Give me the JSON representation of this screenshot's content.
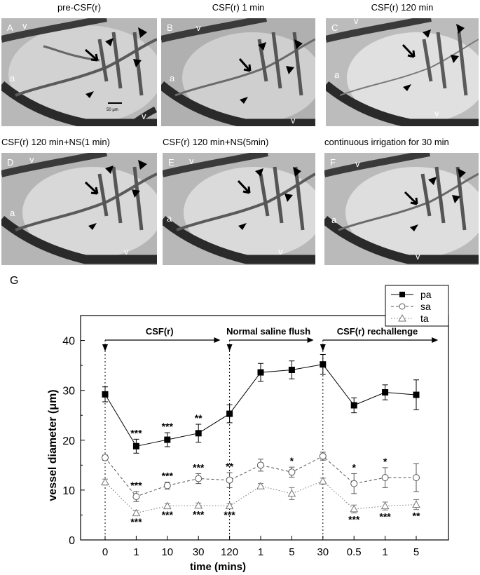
{
  "panels": [
    {
      "letter": "A",
      "title": "pre-CSF(r)",
      "scale_bar": "50 μm",
      "vessel_labels": [
        "v",
        "a",
        "v"
      ]
    },
    {
      "letter": "B",
      "title": "CSF(r) 1 min",
      "vessel_labels": [
        "v",
        "a",
        "v"
      ]
    },
    {
      "letter": "C",
      "title": "CSF(r) 120 min",
      "vessel_labels": [
        "v",
        "a",
        "v"
      ]
    },
    {
      "letter": "D",
      "title": "CSF(r) 120 min+NS(1 min)",
      "vessel_labels": [
        "v",
        "a",
        "v"
      ]
    },
    {
      "letter": "E",
      "title": "CSF(r) 120 min+NS(5min)",
      "vessel_labels": [
        "v",
        "a",
        "v"
      ]
    },
    {
      "letter": "F",
      "title": "continuous irrigation for 30 min",
      "vessel_labels": [
        "v",
        "a",
        "v"
      ]
    }
  ],
  "panel_g_letter": "G",
  "colors": {
    "pa": "#000000",
    "sa": "#555555",
    "ta": "#777777",
    "image_bg": "#bdbdbd"
  },
  "chart_data": {
    "type": "line",
    "xlabel": "time (mins)",
    "ylabel": "vessel diameter (μm)",
    "ylim": [
      0,
      45
    ],
    "yticks": [
      0,
      10,
      20,
      30,
      40
    ],
    "categories": [
      "0",
      "1",
      "10",
      "30",
      "120",
      "1",
      "5",
      "30",
      "0.5",
      "1",
      "5"
    ],
    "phases": [
      {
        "label": "CSF(r)",
        "start_index": 0,
        "end_index": 3.5
      },
      {
        "label": "Normal saline flush",
        "start_index": 4,
        "end_index": 6.5
      },
      {
        "label": "CSF(r) rechallenge",
        "start_index": 7,
        "end_index": 10.5
      }
    ],
    "phase_dividers": [
      0,
      4,
      7
    ],
    "legend_position": "top-right",
    "series": [
      {
        "name": "pa",
        "marker": "square-filled",
        "line": "solid",
        "values": [
          29.2,
          18.8,
          20.1,
          21.4,
          25.3,
          33.6,
          34.1,
          35.2,
          27.0,
          29.6,
          29.1
        ],
        "errors": [
          1.5,
          1.4,
          1.4,
          1.8,
          1.8,
          1.8,
          1.8,
          2.0,
          1.5,
          1.5,
          3.0
        ],
        "significance": [
          "",
          "***",
          "***",
          "**",
          "",
          "",
          "",
          "",
          "",
          "",
          ""
        ]
      },
      {
        "name": "sa",
        "marker": "circle-open",
        "line": "dashed",
        "values": [
          16.5,
          8.7,
          10.9,
          12.3,
          12.0,
          15.0,
          13.6,
          16.8,
          11.3,
          12.5,
          12.5
        ],
        "errors": [
          0.5,
          1.0,
          0.7,
          1.0,
          1.5,
          1.2,
          1.0,
          0.8,
          2.0,
          2.0,
          2.8
        ],
        "significance": [
          "",
          "***",
          "***",
          "***",
          "**",
          "",
          "*",
          "",
          "*",
          "*",
          ""
        ]
      },
      {
        "name": "ta",
        "marker": "triangle-open",
        "line": "dotted",
        "values": [
          11.6,
          5.4,
          6.8,
          6.9,
          6.8,
          10.8,
          9.3,
          11.8,
          6.2,
          6.8,
          7.1
        ],
        "errors": [
          0.6,
          0.5,
          0.5,
          0.5,
          0.5,
          0.5,
          1.2,
          0.6,
          0.8,
          0.8,
          1.0
        ],
        "significance": [
          "",
          "***",
          "***",
          "***",
          "***",
          "",
          "",
          "",
          "***",
          "***",
          "**"
        ]
      }
    ]
  }
}
